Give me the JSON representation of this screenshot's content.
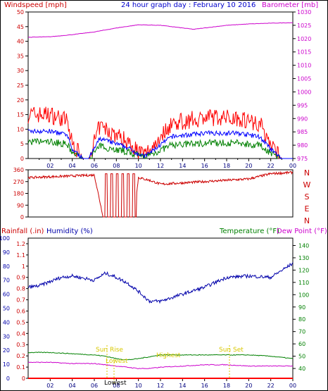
{
  "header": {
    "wind_label": "Windspeed [mph]",
    "title": "24 hour graph day : February 10 2016",
    "baro_label": "Barometer [mb]"
  },
  "dir_labels": [
    "N",
    "W",
    "S",
    "E",
    "N"
  ],
  "bottom_header": {
    "rain_label": "Rainfall (.in)",
    "humidity_label": "Humidity (%)",
    "temp_label": "Temperature (°F)",
    "dew_label": "Dew Point (°F)"
  },
  "annotations": {
    "sunrise": "Sun Rise",
    "sunset": "Sun Set",
    "lowest": "Lowest",
    "highest": "Highest",
    "lowest_dew": "Lowest"
  },
  "colors": {
    "wind": "#ff0000",
    "wind_avg": "#0000ff",
    "wind_min": "#008000",
    "barometer": "#cc00cc",
    "direction": "#cc0000",
    "humidity": "#0000aa",
    "temperature": "#008000",
    "dewpoint": "#cc00cc",
    "rain": "#ff0000",
    "annotation": "#d8c800"
  },
  "chart_data": [
    {
      "type": "line",
      "name": "wind-barometer",
      "x_ticks": [
        "02",
        "04",
        "06",
        "08",
        "10",
        "12",
        "14",
        "16",
        "18",
        "20",
        "22",
        "00"
      ],
      "ylim": [
        0,
        50
      ],
      "y_ticks": [
        0,
        5,
        10,
        15,
        20,
        25,
        30,
        35,
        40,
        45,
        50
      ],
      "y2lim": [
        975,
        1030
      ],
      "y2_ticks": [
        975,
        980,
        985,
        990,
        995,
        1000,
        1005,
        1010,
        1015,
        1020,
        1025,
        1030
      ],
      "series": [
        {
          "name": "Windspeed",
          "axis": "left",
          "x": [
            0,
            2,
            3.5,
            4,
            5,
            5.5,
            6.5,
            9,
            10.5,
            11,
            13,
            16,
            19,
            21,
            22,
            23
          ],
          "values": [
            15,
            15,
            13,
            5,
            0,
            0,
            11,
            6,
            1,
            3,
            12,
            14,
            14,
            12,
            5,
            0
          ]
        },
        {
          "name": "Barometer",
          "axis": "right",
          "x": [
            0,
            2,
            4,
            6,
            8,
            10,
            12,
            14,
            15,
            16,
            18,
            20,
            22,
            24
          ],
          "values": [
            1020.5,
            1020.7,
            1021.5,
            1022.5,
            1024,
            1025.2,
            1025,
            1024,
            1023.5,
            1024,
            1025,
            1025.5,
            1025.8,
            1026
          ]
        }
      ]
    },
    {
      "type": "line",
      "name": "wind-direction",
      "ylim": [
        0,
        360
      ],
      "y_ticks": [
        0,
        90,
        180,
        270,
        360
      ],
      "series": [
        {
          "name": "Direction",
          "x": [
            0,
            3,
            6,
            6.8,
            9.6,
            10,
            11,
            12,
            16,
            20,
            22,
            24
          ],
          "values": [
            300,
            310,
            320,
            0,
            0,
            300,
            280,
            250,
            270,
            290,
            330,
            340
          ]
        }
      ]
    },
    {
      "type": "line",
      "name": "rain-humidity-temp",
      "rain_ticks": [
        0,
        0.1,
        0.2,
        0.3,
        0.4,
        0.5,
        0.6,
        0.7,
        0.8,
        0.9,
        1,
        1.1,
        1.2
      ],
      "humidity_ticks": [
        0,
        10,
        20,
        30,
        40,
        50,
        60,
        70,
        80,
        90,
        100
      ],
      "temp_ticks": [
        40,
        50,
        60,
        70,
        80,
        90,
        100,
        110,
        120,
        130,
        140
      ],
      "humidity_range": [
        0,
        100
      ],
      "temp_range": [
        32,
        146
      ],
      "series": [
        {
          "name": "Humidity",
          "x": [
            0,
            1,
            3,
            4,
            6,
            7,
            8,
            9,
            10,
            11,
            12,
            14,
            16,
            18,
            20,
            22,
            24
          ],
          "values": [
            65,
            66,
            72,
            73,
            70,
            75,
            72,
            68,
            62,
            55,
            55,
            60,
            65,
            72,
            73,
            72,
            82
          ]
        },
        {
          "name": "Temperature",
          "x": [
            0,
            2,
            4,
            6,
            7,
            8,
            9,
            10,
            12,
            14,
            16,
            18,
            20,
            22,
            24
          ],
          "values": [
            53,
            53,
            52,
            51,
            50,
            48,
            47,
            48,
            51,
            51,
            51,
            51,
            51,
            50,
            48
          ]
        },
        {
          "name": "Dew Point",
          "x": [
            0,
            2,
            4,
            6,
            7,
            8,
            9,
            10,
            11,
            12,
            14,
            16,
            18,
            20,
            22,
            24
          ],
          "values": [
            45,
            45,
            44,
            44,
            43,
            42,
            41,
            40,
            40,
            41,
            42,
            43,
            43,
            42,
            42,
            42
          ]
        },
        {
          "name": "Rainfall",
          "x": [
            0,
            24
          ],
          "values": [
            0,
            0
          ]
        }
      ]
    }
  ]
}
